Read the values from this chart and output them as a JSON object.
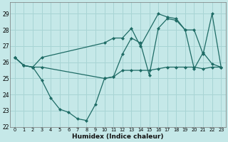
{
  "xlabel": "Humidex (Indice chaleur)",
  "bg_color": "#c5e8e8",
  "grid_color": "#a8d4d4",
  "line_color": "#1e6b65",
  "xlim": [
    -0.5,
    23.5
  ],
  "ylim": [
    22,
    29.7
  ],
  "xticks": [
    0,
    1,
    2,
    3,
    4,
    5,
    6,
    7,
    8,
    9,
    10,
    11,
    12,
    13,
    14,
    15,
    16,
    17,
    18,
    19,
    20,
    21,
    22,
    23
  ],
  "yticks": [
    22,
    23,
    24,
    25,
    26,
    27,
    28,
    29
  ],
  "line1_x": [
    0,
    1,
    2,
    3,
    10,
    11,
    12,
    13,
    14,
    16,
    17,
    18,
    19,
    20,
    21,
    22,
    23
  ],
  "line1_y": [
    26.3,
    25.8,
    25.7,
    26.3,
    27.2,
    27.5,
    27.5,
    28.1,
    27.0,
    29.0,
    28.8,
    28.7,
    28.0,
    28.0,
    26.5,
    29.0,
    25.7
  ],
  "line2_x": [
    0,
    1,
    2,
    3,
    10,
    11,
    12,
    13,
    14,
    15,
    16,
    17,
    18,
    19,
    20,
    21,
    22,
    23
  ],
  "line2_y": [
    26.3,
    25.8,
    25.7,
    25.7,
    25.0,
    25.1,
    25.5,
    25.5,
    25.5,
    25.5,
    25.6,
    25.7,
    25.7,
    25.7,
    25.7,
    25.6,
    25.7,
    25.7
  ],
  "line3_x": [
    0,
    1,
    2,
    3,
    4,
    5,
    6,
    7,
    8,
    9,
    10,
    11,
    12,
    13,
    14,
    15,
    16,
    17,
    18,
    19,
    20,
    21,
    22,
    23
  ],
  "line3_y": [
    26.3,
    25.8,
    25.7,
    24.9,
    23.8,
    23.1,
    22.9,
    22.5,
    22.4,
    23.4,
    25.0,
    25.1,
    26.5,
    27.5,
    27.2,
    25.2,
    28.1,
    28.7,
    28.6,
    28.0,
    25.6,
    26.6,
    25.9,
    25.7
  ]
}
